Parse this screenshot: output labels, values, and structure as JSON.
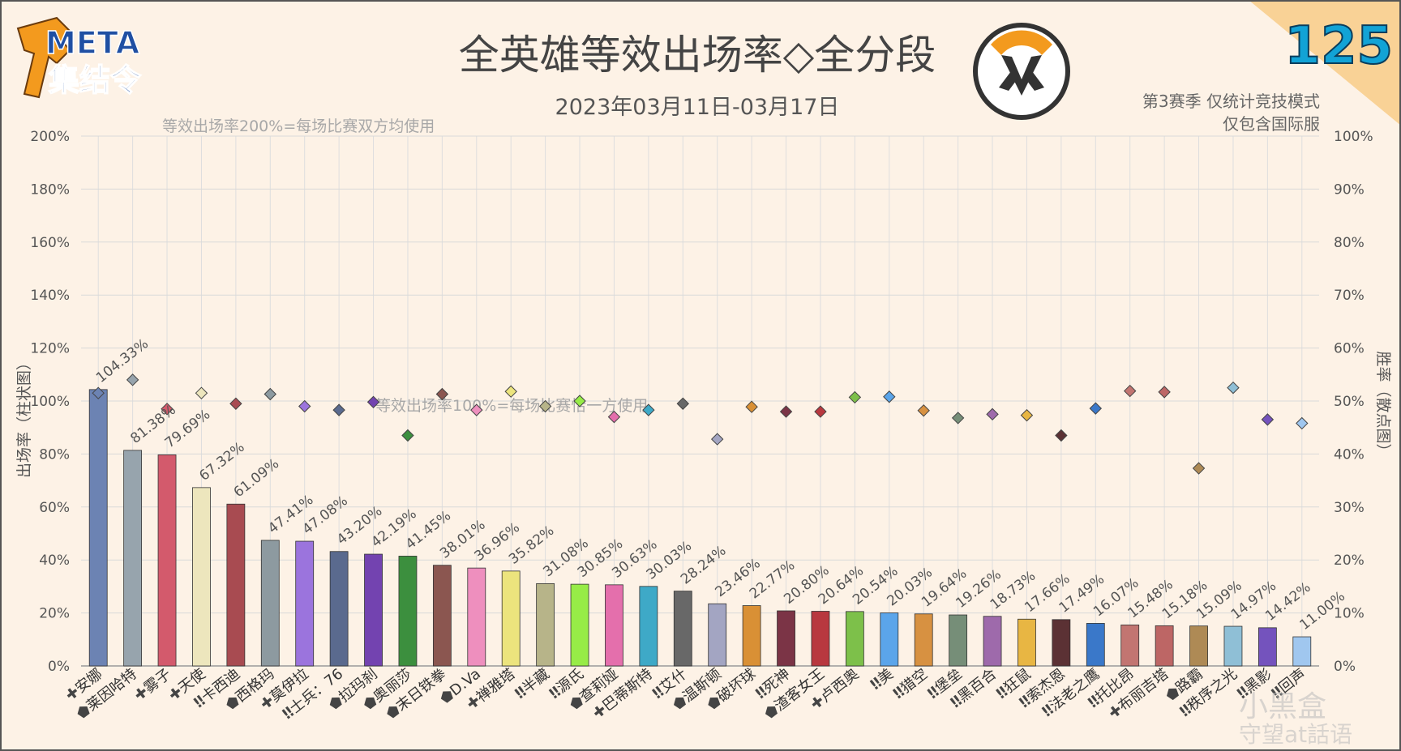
{
  "header": {
    "logo_line1": "META",
    "logo_line2": "集结令",
    "title": "全英雄等效出场率◇全分段",
    "date_range": "2023年03月11日-03月17日",
    "issue_number": "125",
    "note_line1": "第3赛季 仅统计竞技模式",
    "note_line2": "仅包含国际服",
    "watermark": "小黑盒",
    "watermark2": "守望at話语"
  },
  "colors": {
    "background": "#fdf2e6",
    "grid": "#d9d9d9",
    "corner": "#f9d296",
    "issue_number": "#12a3d6",
    "logo_orange": "#f39a1e",
    "logo_text": "#1f4fa3"
  },
  "chart_data": {
    "type": "bar",
    "title": "全英雄等效出场率◇全分段",
    "subtitle": "2023年03月11日-03月17日",
    "ylabel": "出场率（柱状图）",
    "y2label": "胜率（散点图）",
    "ylim": [
      0,
      200
    ],
    "y2lim": [
      0,
      100
    ],
    "yticks": [
      "0%",
      "20%",
      "40%",
      "60%",
      "80%",
      "100%",
      "120%",
      "140%",
      "160%",
      "180%",
      "200%"
    ],
    "y2ticks": [
      "0%",
      "10%",
      "20%",
      "30%",
      "40%",
      "50%",
      "60%",
      "70%",
      "80%",
      "90%",
      "100%"
    ],
    "reference_lines": [
      {
        "value": 200,
        "label": "等效出场率200%=每场比赛双方均使用"
      },
      {
        "value": 100,
        "label": "等效出场率100%=每场比赛恰一方使用"
      }
    ],
    "grid": true,
    "categories": [
      "安娜",
      "莱因哈特",
      "雾子",
      "天使",
      "卡西迪",
      "西格玛",
      "莫伊拉",
      "士兵：76",
      "拉玛刹",
      "奥丽莎",
      "末日铁拳",
      "D.Va",
      "禅雅塔",
      "半藏",
      "源氏",
      "查莉娅",
      "巴蒂斯特",
      "艾什",
      "温斯顿",
      "破坏球",
      "死神",
      "渣客女王",
      "卢西奥",
      "美",
      "猎空",
      "堡垒",
      "黑百合",
      "狂鼠",
      "索杰恩",
      "法老之鹰",
      "托比昂",
      "布丽吉塔",
      "路霸",
      "秩序之光",
      "黑影",
      "回声"
    ],
    "roles": [
      "support",
      "tank",
      "support",
      "support",
      "damage",
      "tank",
      "support",
      "damage",
      "tank",
      "tank",
      "tank",
      "tank",
      "support",
      "damage",
      "damage",
      "tank",
      "support",
      "damage",
      "tank",
      "tank",
      "damage",
      "tank",
      "support",
      "damage",
      "damage",
      "damage",
      "damage",
      "damage",
      "damage",
      "damage",
      "damage",
      "support",
      "tank",
      "damage",
      "damage",
      "damage"
    ],
    "series": [
      {
        "name": "出场率",
        "values": [
          104.33,
          81.38,
          79.69,
          67.32,
          61.09,
          47.41,
          47.08,
          43.2,
          42.19,
          41.45,
          38.01,
          36.96,
          35.82,
          31.08,
          30.85,
          30.63,
          30.03,
          28.24,
          23.46,
          22.77,
          20.8,
          20.64,
          20.54,
          20.03,
          19.64,
          19.26,
          18.73,
          17.66,
          17.49,
          16.07,
          15.48,
          15.18,
          15.09,
          14.97,
          14.42,
          11.0
        ]
      },
      {
        "name": "胜率",
        "values": [
          51.5,
          54.0,
          48.5,
          51.5,
          49.5,
          51.3,
          49.0,
          48.3,
          49.8,
          43.5,
          51.3,
          48.3,
          51.8,
          49.0,
          50.0,
          47.0,
          48.3,
          49.5,
          42.8,
          48.9,
          48.0,
          48.0,
          50.7,
          50.8,
          48.2,
          46.8,
          47.5,
          47.3,
          43.5,
          48.6,
          51.9,
          51.7,
          37.3,
          52.5,
          46.5,
          45.8
        ]
      }
    ],
    "bar_labels": [
      "104.33%",
      "81.38%",
      "79.69%",
      "67.32%",
      "61.09%",
      "47.41%",
      "47.08%",
      "43.20%",
      "42.19%",
      "41.45%",
      "38.01%",
      "36.96%",
      "35.82%",
      "31.08%",
      "30.85%",
      "30.63%",
      "30.03%",
      "28.24%",
      "23.46%",
      "22.77%",
      "20.80%",
      "20.64%",
      "20.54%",
      "20.03%",
      "19.64%",
      "19.26%",
      "18.73%",
      "17.66%",
      "17.49%",
      "16.07%",
      "15.48%",
      "15.18%",
      "15.09%",
      "14.97%",
      "14.42%",
      "11.00%"
    ],
    "hero_colors": [
      "#6c83b3",
      "#97a4ad",
      "#d35a6c",
      "#ede6bd",
      "#a84b51",
      "#8d9aa0",
      "#9b74dd",
      "#5a6a8e",
      "#7343b0",
      "#3c8f3e",
      "#8b5650",
      "#ee8fbe",
      "#ece47d",
      "#b7b489",
      "#97ec47",
      "#e46fac",
      "#3ea9c7",
      "#686868",
      "#a3a5c2",
      "#d99035",
      "#7b3446",
      "#b8383f",
      "#7dc04a",
      "#5ba5ea",
      "#d79141",
      "#768e78",
      "#9e6aab",
      "#e8b643",
      "#5b3134",
      "#3a78c9",
      "#c27571",
      "#bd6665",
      "#ae8a55",
      "#8fbfd6",
      "#7453bd",
      "#a0c7ef"
    ]
  }
}
